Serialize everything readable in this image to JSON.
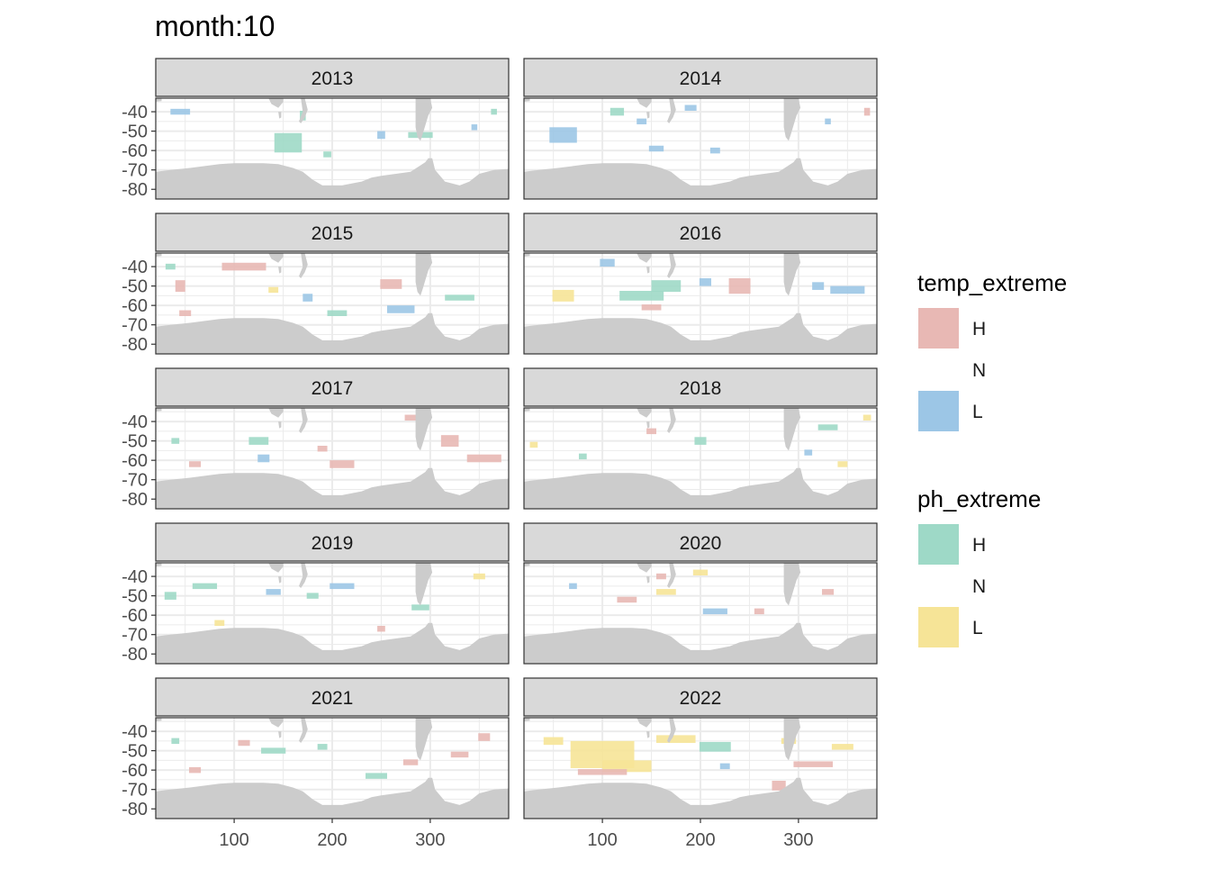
{
  "chart_data": {
    "type": "heatmap",
    "title": "month:10",
    "facet_labels": [
      "2013",
      "2014",
      "2015",
      "2016",
      "2017",
      "2018",
      "2019",
      "2020",
      "2021",
      "2022"
    ],
    "x_ticks": [
      100,
      200,
      300
    ],
    "y_ticks": [
      -40,
      -50,
      -60,
      -70,
      -80
    ],
    "xlim": [
      20,
      380
    ],
    "ylim": [
      -85,
      -33
    ],
    "grid": true,
    "legend_position": "right",
    "colors": {
      "temp_H": "#e8b8b4",
      "temp_L": "#9cc6e6",
      "ph_H": "#9ed9c7",
      "ph_L": "#f6e497",
      "land": "#cccccc",
      "strip": "#d9d9d9",
      "grid": "#ebebeb"
    },
    "legends": [
      {
        "title": "temp_extreme",
        "items": [
          {
            "label": "H",
            "color": "#e8b8b4"
          },
          {
            "label": "N",
            "color": null
          },
          {
            "label": "L",
            "color": "#9cc6e6"
          }
        ]
      },
      {
        "title": "ph_extreme",
        "items": [
          {
            "label": "H",
            "color": "#9ed9c7"
          },
          {
            "label": "N",
            "color": null
          },
          {
            "label": "L",
            "color": "#f6e497"
          }
        ]
      }
    ],
    "facets": [
      {
        "year": "2013",
        "patches": [
          {
            "lon": 155,
            "lat": -56,
            "w": 28,
            "h": 10,
            "cat": "ph_H"
          },
          {
            "lon": 250,
            "lat": -52,
            "w": 8,
            "h": 4,
            "cat": "temp_L"
          },
          {
            "lon": 45,
            "lat": -40,
            "w": 20,
            "h": 3,
            "cat": "temp_L"
          },
          {
            "lon": 170,
            "lat": -42,
            "w": 6,
            "h": 5,
            "cat": "ph_H"
          },
          {
            "lon": 290,
            "lat": -52,
            "w": 25,
            "h": 3,
            "cat": "ph_H"
          },
          {
            "lon": 195,
            "lat": -62,
            "w": 8,
            "h": 3,
            "cat": "ph_H"
          },
          {
            "lon": 345,
            "lat": -48,
            "w": 6,
            "h": 3,
            "cat": "temp_L"
          },
          {
            "lon": 365,
            "lat": -40,
            "w": 6,
            "h": 3,
            "cat": "ph_H"
          }
        ]
      },
      {
        "year": "2014",
        "patches": [
          {
            "lon": 60,
            "lat": -52,
            "w": 28,
            "h": 8,
            "cat": "temp_L"
          },
          {
            "lon": 115,
            "lat": -40,
            "w": 14,
            "h": 4,
            "cat": "ph_H"
          },
          {
            "lon": 140,
            "lat": -45,
            "w": 10,
            "h": 3,
            "cat": "temp_L"
          },
          {
            "lon": 155,
            "lat": -59,
            "w": 15,
            "h": 3,
            "cat": "temp_L"
          },
          {
            "lon": 330,
            "lat": -45,
            "w": 6,
            "h": 3,
            "cat": "temp_L"
          },
          {
            "lon": 370,
            "lat": -40,
            "w": 6,
            "h": 4,
            "cat": "temp_H"
          },
          {
            "lon": 190,
            "lat": -38,
            "w": 12,
            "h": 3,
            "cat": "temp_L"
          },
          {
            "lon": 215,
            "lat": -60,
            "w": 10,
            "h": 3,
            "cat": "temp_L"
          }
        ]
      },
      {
        "year": "2015",
        "patches": [
          {
            "lon": 110,
            "lat": -40,
            "w": 45,
            "h": 4,
            "cat": "temp_H"
          },
          {
            "lon": 260,
            "lat": -49,
            "w": 22,
            "h": 5,
            "cat": "temp_H"
          },
          {
            "lon": 270,
            "lat": -62,
            "w": 28,
            "h": 4,
            "cat": "temp_L"
          },
          {
            "lon": 205,
            "lat": -64,
            "w": 20,
            "h": 3,
            "cat": "ph_H"
          },
          {
            "lon": 45,
            "lat": -50,
            "w": 10,
            "h": 6,
            "cat": "temp_H"
          },
          {
            "lon": 50,
            "lat": -64,
            "w": 12,
            "h": 3,
            "cat": "temp_H"
          },
          {
            "lon": 330,
            "lat": -56,
            "w": 30,
            "h": 3,
            "cat": "ph_H"
          },
          {
            "lon": 175,
            "lat": -56,
            "w": 10,
            "h": 4,
            "cat": "temp_L"
          },
          {
            "lon": 140,
            "lat": -52,
            "w": 10,
            "h": 3,
            "cat": "ph_L"
          },
          {
            "lon": 35,
            "lat": -40,
            "w": 10,
            "h": 3,
            "cat": "ph_H"
          }
        ]
      },
      {
        "year": "2016",
        "patches": [
          {
            "lon": 140,
            "lat": -55,
            "w": 45,
            "h": 5,
            "cat": "ph_H"
          },
          {
            "lon": 165,
            "lat": -50,
            "w": 30,
            "h": 6,
            "cat": "ph_H"
          },
          {
            "lon": 240,
            "lat": -50,
            "w": 22,
            "h": 8,
            "cat": "temp_H"
          },
          {
            "lon": 350,
            "lat": -52,
            "w": 35,
            "h": 4,
            "cat": "temp_L"
          },
          {
            "lon": 320,
            "lat": -50,
            "w": 12,
            "h": 4,
            "cat": "temp_L"
          },
          {
            "lon": 60,
            "lat": -55,
            "w": 22,
            "h": 6,
            "cat": "ph_L"
          },
          {
            "lon": 105,
            "lat": -38,
            "w": 15,
            "h": 4,
            "cat": "temp_L"
          },
          {
            "lon": 150,
            "lat": -61,
            "w": 20,
            "h": 3,
            "cat": "temp_H"
          },
          {
            "lon": 205,
            "lat": -48,
            "w": 12,
            "h": 4,
            "cat": "temp_L"
          }
        ]
      },
      {
        "year": "2017",
        "patches": [
          {
            "lon": 355,
            "lat": -59,
            "w": 35,
            "h": 4,
            "cat": "temp_H"
          },
          {
            "lon": 210,
            "lat": -62,
            "w": 25,
            "h": 4,
            "cat": "temp_H"
          },
          {
            "lon": 130,
            "lat": -59,
            "w": 12,
            "h": 4,
            "cat": "temp_L"
          },
          {
            "lon": 125,
            "lat": -50,
            "w": 20,
            "h": 4,
            "cat": "ph_H"
          },
          {
            "lon": 320,
            "lat": -50,
            "w": 18,
            "h": 6,
            "cat": "temp_H"
          },
          {
            "lon": 280,
            "lat": -38,
            "w": 12,
            "h": 3,
            "cat": "temp_H"
          },
          {
            "lon": 60,
            "lat": -62,
            "w": 12,
            "h": 3,
            "cat": "temp_H"
          },
          {
            "lon": 40,
            "lat": -50,
            "w": 8,
            "h": 3,
            "cat": "ph_H"
          },
          {
            "lon": 190,
            "lat": -54,
            "w": 10,
            "h": 3,
            "cat": "temp_H"
          }
        ]
      },
      {
        "year": "2018",
        "patches": [
          {
            "lon": 200,
            "lat": -50,
            "w": 12,
            "h": 4,
            "cat": "ph_H"
          },
          {
            "lon": 330,
            "lat": -43,
            "w": 20,
            "h": 3,
            "cat": "ph_H"
          },
          {
            "lon": 345,
            "lat": -62,
            "w": 10,
            "h": 3,
            "cat": "ph_L"
          },
          {
            "lon": 370,
            "lat": -38,
            "w": 8,
            "h": 3,
            "cat": "ph_L"
          },
          {
            "lon": 150,
            "lat": -45,
            "w": 10,
            "h": 3,
            "cat": "temp_H"
          },
          {
            "lon": 80,
            "lat": -58,
            "w": 8,
            "h": 3,
            "cat": "ph_H"
          },
          {
            "lon": 30,
            "lat": -52,
            "w": 8,
            "h": 3,
            "cat": "ph_L"
          },
          {
            "lon": 310,
            "lat": -56,
            "w": 8,
            "h": 3,
            "cat": "temp_L"
          }
        ]
      },
      {
        "year": "2019",
        "patches": [
          {
            "lon": 35,
            "lat": -50,
            "w": 12,
            "h": 4,
            "cat": "ph_H"
          },
          {
            "lon": 180,
            "lat": -50,
            "w": 12,
            "h": 3,
            "cat": "ph_H"
          },
          {
            "lon": 210,
            "lat": -45,
            "w": 25,
            "h": 3,
            "cat": "temp_L"
          },
          {
            "lon": 70,
            "lat": -45,
            "w": 25,
            "h": 3,
            "cat": "ph_H"
          },
          {
            "lon": 350,
            "lat": -40,
            "w": 12,
            "h": 3,
            "cat": "ph_L"
          },
          {
            "lon": 250,
            "lat": -67,
            "w": 8,
            "h": 3,
            "cat": "temp_H"
          },
          {
            "lon": 85,
            "lat": -64,
            "w": 10,
            "h": 3,
            "cat": "ph_L"
          },
          {
            "lon": 290,
            "lat": -56,
            "w": 18,
            "h": 3,
            "cat": "ph_H"
          },
          {
            "lon": 140,
            "lat": -48,
            "w": 15,
            "h": 3,
            "cat": "temp_L"
          }
        ]
      },
      {
        "year": "2020",
        "patches": [
          {
            "lon": 165,
            "lat": -48,
            "w": 20,
            "h": 3,
            "cat": "ph_L"
          },
          {
            "lon": 215,
            "lat": -58,
            "w": 25,
            "h": 3,
            "cat": "temp_L"
          },
          {
            "lon": 160,
            "lat": -40,
            "w": 10,
            "h": 3,
            "cat": "temp_H"
          },
          {
            "lon": 200,
            "lat": -38,
            "w": 15,
            "h": 3,
            "cat": "ph_L"
          },
          {
            "lon": 70,
            "lat": -45,
            "w": 8,
            "h": 3,
            "cat": "temp_L"
          },
          {
            "lon": 125,
            "lat": -52,
            "w": 20,
            "h": 3,
            "cat": "temp_H"
          },
          {
            "lon": 330,
            "lat": -48,
            "w": 12,
            "h": 3,
            "cat": "temp_H"
          },
          {
            "lon": 260,
            "lat": -58,
            "w": 10,
            "h": 3,
            "cat": "temp_H"
          }
        ]
      },
      {
        "year": "2021",
        "patches": [
          {
            "lon": 60,
            "lat": -60,
            "w": 12,
            "h": 3,
            "cat": "temp_H"
          },
          {
            "lon": 140,
            "lat": -50,
            "w": 25,
            "h": 3,
            "cat": "ph_H"
          },
          {
            "lon": 110,
            "lat": -46,
            "w": 12,
            "h": 3,
            "cat": "temp_H"
          },
          {
            "lon": 280,
            "lat": -56,
            "w": 15,
            "h": 3,
            "cat": "temp_H"
          },
          {
            "lon": 355,
            "lat": -43,
            "w": 12,
            "h": 4,
            "cat": "temp_H"
          },
          {
            "lon": 245,
            "lat": -63,
            "w": 22,
            "h": 3,
            "cat": "ph_H"
          },
          {
            "lon": 40,
            "lat": -45,
            "w": 8,
            "h": 3,
            "cat": "ph_H"
          },
          {
            "lon": 190,
            "lat": -48,
            "w": 10,
            "h": 3,
            "cat": "ph_H"
          },
          {
            "lon": 330,
            "lat": -52,
            "w": 18,
            "h": 3,
            "cat": "temp_H"
          }
        ]
      },
      {
        "year": "2022",
        "patches": [
          {
            "lon": 100,
            "lat": -52,
            "w": 65,
            "h": 14,
            "cat": "ph_L"
          },
          {
            "lon": 125,
            "lat": -58,
            "w": 50,
            "h": 6,
            "cat": "ph_L"
          },
          {
            "lon": 175,
            "lat": -44,
            "w": 40,
            "h": 4,
            "cat": "ph_L"
          },
          {
            "lon": 215,
            "lat": -48,
            "w": 32,
            "h": 5,
            "cat": "ph_H"
          },
          {
            "lon": 100,
            "lat": -61,
            "w": 50,
            "h": 3,
            "cat": "temp_H"
          },
          {
            "lon": 280,
            "lat": -68,
            "w": 14,
            "h": 5,
            "cat": "temp_H"
          },
          {
            "lon": 315,
            "lat": -57,
            "w": 40,
            "h": 3,
            "cat": "temp_H"
          },
          {
            "lon": 345,
            "lat": -48,
            "w": 22,
            "h": 3,
            "cat": "ph_L"
          },
          {
            "lon": 50,
            "lat": -45,
            "w": 20,
            "h": 4,
            "cat": "ph_L"
          },
          {
            "lon": 225,
            "lat": -58,
            "w": 10,
            "h": 3,
            "cat": "temp_L"
          },
          {
            "lon": 290,
            "lat": -45,
            "w": 15,
            "h": 3,
            "cat": "ph_L"
          }
        ]
      }
    ]
  }
}
